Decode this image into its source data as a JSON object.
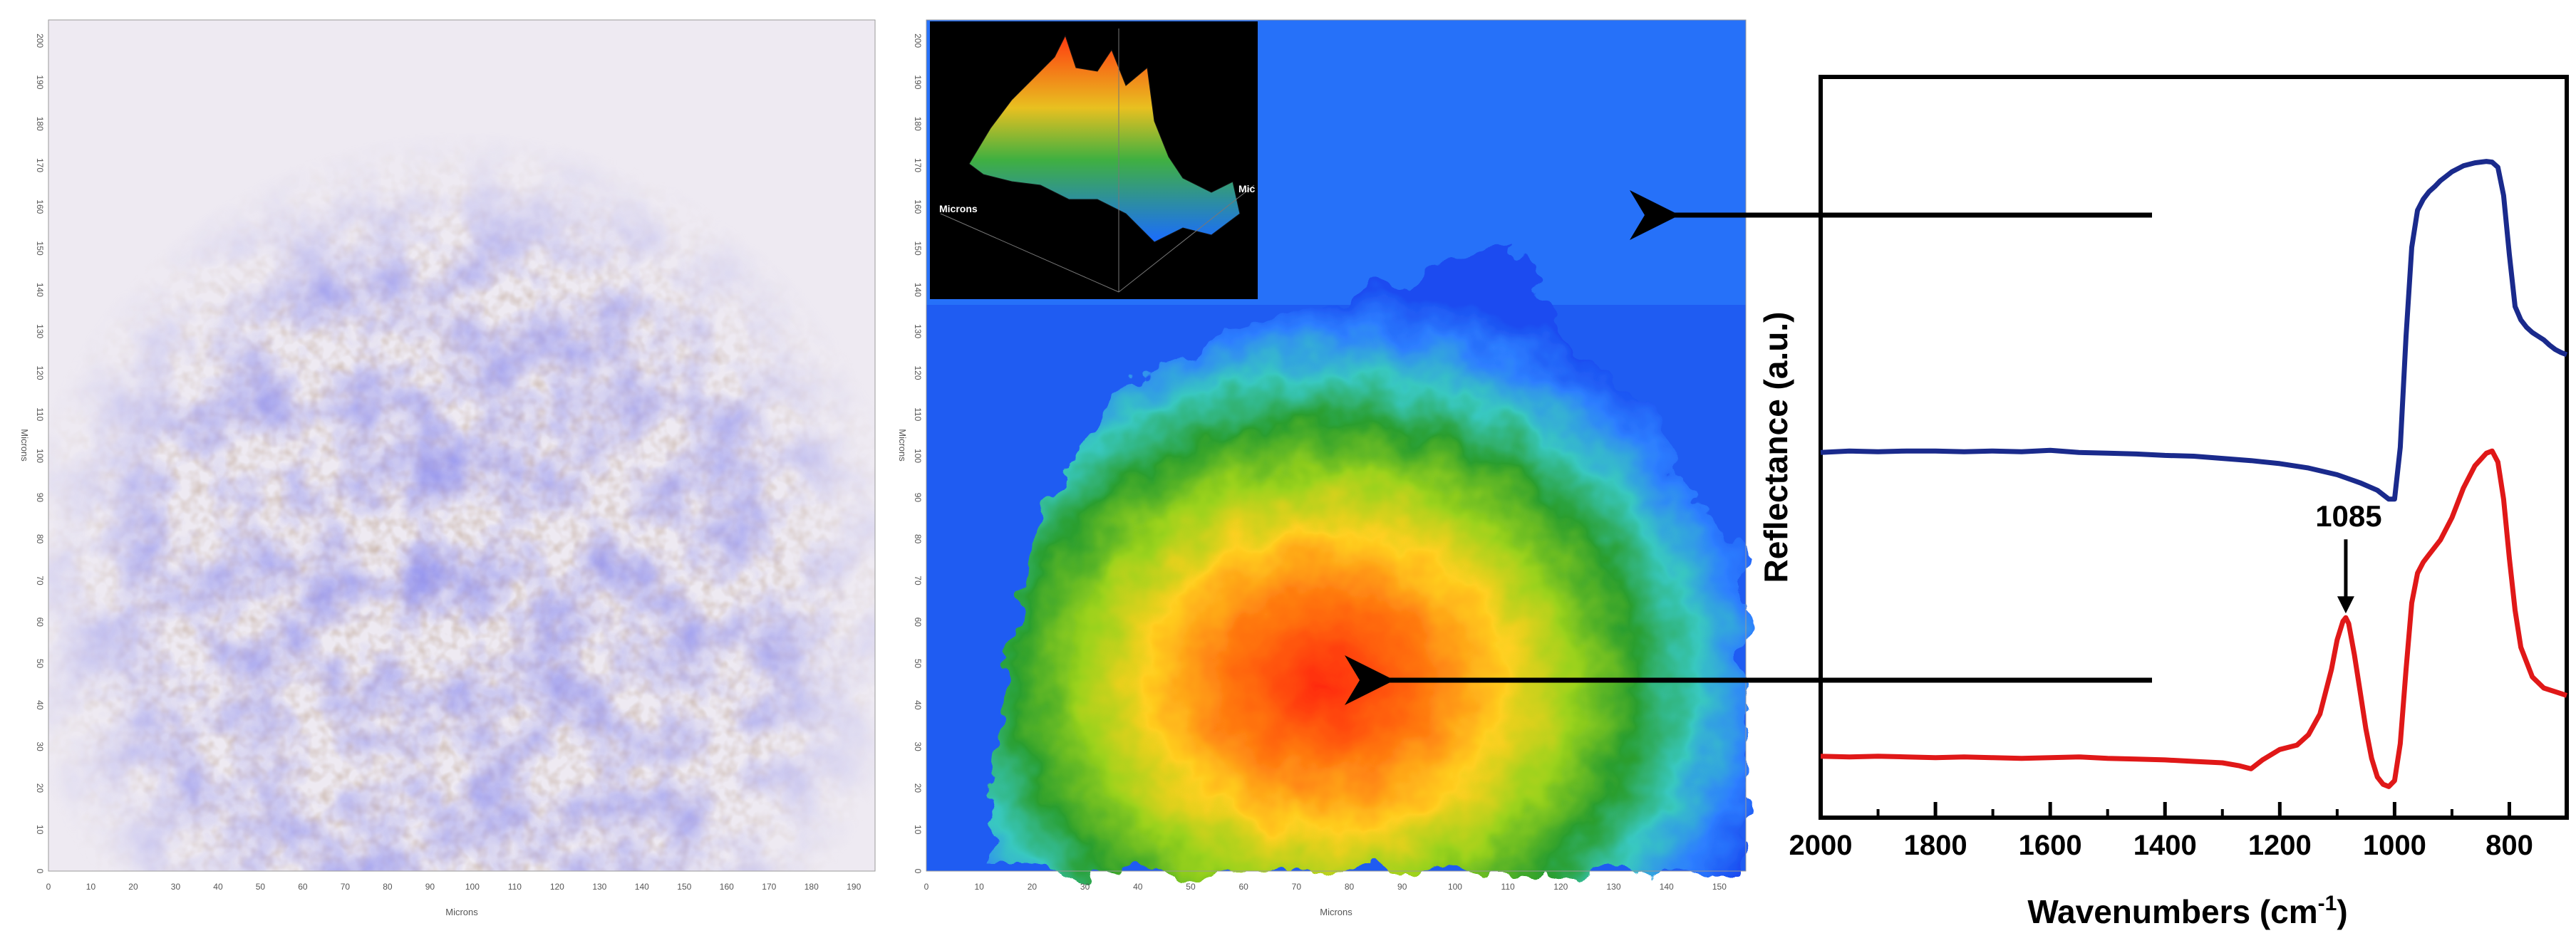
{
  "panels": {
    "micrograph": {
      "x_axis_label": "Microns",
      "y_axis_label": "Microns",
      "x_ticks": [
        "0",
        "10",
        "20",
        "30",
        "40",
        "50",
        "60",
        "70",
        "80",
        "90",
        "100",
        "110",
        "120",
        "130",
        "140",
        "150",
        "160",
        "170",
        "180",
        "190"
      ],
      "y_ticks": [
        "0",
        "10",
        "20",
        "30",
        "40",
        "50",
        "60",
        "70",
        "80",
        "90",
        "100",
        "110",
        "120",
        "130",
        "140",
        "150",
        "160",
        "170",
        "180",
        "190",
        "200"
      ]
    },
    "chemical_map": {
      "x_axis_label": "Microns",
      "y_axis_label": "Microns",
      "x_ticks": [
        "0",
        "10",
        "20",
        "30",
        "40",
        "50",
        "60",
        "70",
        "80",
        "90",
        "100",
        "110",
        "120",
        "130",
        "140",
        "150"
      ],
      "y_ticks": [
        "0",
        "10",
        "20",
        "30",
        "40",
        "50",
        "60",
        "70",
        "80",
        "90",
        "100",
        "110",
        "120",
        "130",
        "140",
        "150",
        "160",
        "170",
        "180",
        "190",
        "200"
      ],
      "inset_labels": [
        "Microns",
        "Mic"
      ]
    }
  },
  "colors": {
    "blue_spectrum": "#1a2a8c",
    "red_spectrum": "#e01818",
    "axis": "#000000",
    "map_low": "#1a5cff",
    "map_mid": "#1f9a2c",
    "map_high": "#ff3010"
  },
  "chart_data": {
    "type": "line",
    "xlabel": "Wavenumbers (cm",
    "xlabel_sup": "-1",
    "xlabel_end": ")",
    "ylabel": "Reflectance (a.u.)",
    "xlim": [
      2000,
      700
    ],
    "ylim": [
      0,
      1
    ],
    "x_ticks": [
      "2000",
      "1800",
      "1600",
      "1400",
      "1200",
      "1000",
      "800"
    ],
    "annotations": [
      {
        "text": "1085",
        "x": 1085
      }
    ],
    "series": [
      {
        "color": "#1a2a8c",
        "x": [
          2000,
          1950,
          1900,
          1850,
          1800,
          1750,
          1700,
          1650,
          1600,
          1550,
          1500,
          1450,
          1400,
          1350,
          1300,
          1250,
          1200,
          1150,
          1100,
          1060,
          1030,
          1010,
          1000,
          990,
          980,
          970,
          960,
          950,
          940,
          930,
          920,
          910,
          900,
          880,
          860,
          840,
          830,
          820,
          810,
          800,
          790,
          780,
          770,
          760,
          750,
          740,
          730,
          720,
          710,
          700
        ],
        "y": [
          0.493,
          0.495,
          0.494,
          0.495,
          0.495,
          0.494,
          0.495,
          0.494,
          0.496,
          0.493,
          0.492,
          0.491,
          0.489,
          0.488,
          0.485,
          0.482,
          0.478,
          0.472,
          0.463,
          0.452,
          0.442,
          0.43,
          0.43,
          0.5,
          0.65,
          0.77,
          0.82,
          0.835,
          0.845,
          0.852,
          0.86,
          0.866,
          0.872,
          0.88,
          0.884,
          0.886,
          0.885,
          0.878,
          0.84,
          0.76,
          0.69,
          0.672,
          0.662,
          0.655,
          0.65,
          0.645,
          0.638,
          0.632,
          0.628,
          0.625
        ]
      },
      {
        "color": "#e01818",
        "x": [
          2000,
          1950,
          1900,
          1850,
          1800,
          1750,
          1700,
          1650,
          1600,
          1550,
          1500,
          1450,
          1400,
          1350,
          1300,
          1270,
          1250,
          1230,
          1200,
          1170,
          1150,
          1130,
          1110,
          1100,
          1090,
          1085,
          1080,
          1070,
          1060,
          1050,
          1040,
          1030,
          1020,
          1010,
          1000,
          990,
          980,
          970,
          960,
          950,
          940,
          920,
          900,
          880,
          860,
          840,
          830,
          820,
          810,
          800,
          790,
          780,
          760,
          740,
          720,
          700
        ],
        "y": [
          0.083,
          0.082,
          0.083,
          0.082,
          0.081,
          0.082,
          0.081,
          0.08,
          0.081,
          0.082,
          0.08,
          0.079,
          0.078,
          0.076,
          0.074,
          0.07,
          0.066,
          0.078,
          0.092,
          0.098,
          0.112,
          0.14,
          0.2,
          0.24,
          0.265,
          0.27,
          0.262,
          0.22,
          0.17,
          0.12,
          0.08,
          0.055,
          0.045,
          0.042,
          0.05,
          0.1,
          0.2,
          0.29,
          0.33,
          0.345,
          0.355,
          0.375,
          0.405,
          0.445,
          0.475,
          0.492,
          0.495,
          0.48,
          0.43,
          0.35,
          0.28,
          0.23,
          0.19,
          0.175,
          0.17,
          0.165
        ]
      }
    ]
  }
}
